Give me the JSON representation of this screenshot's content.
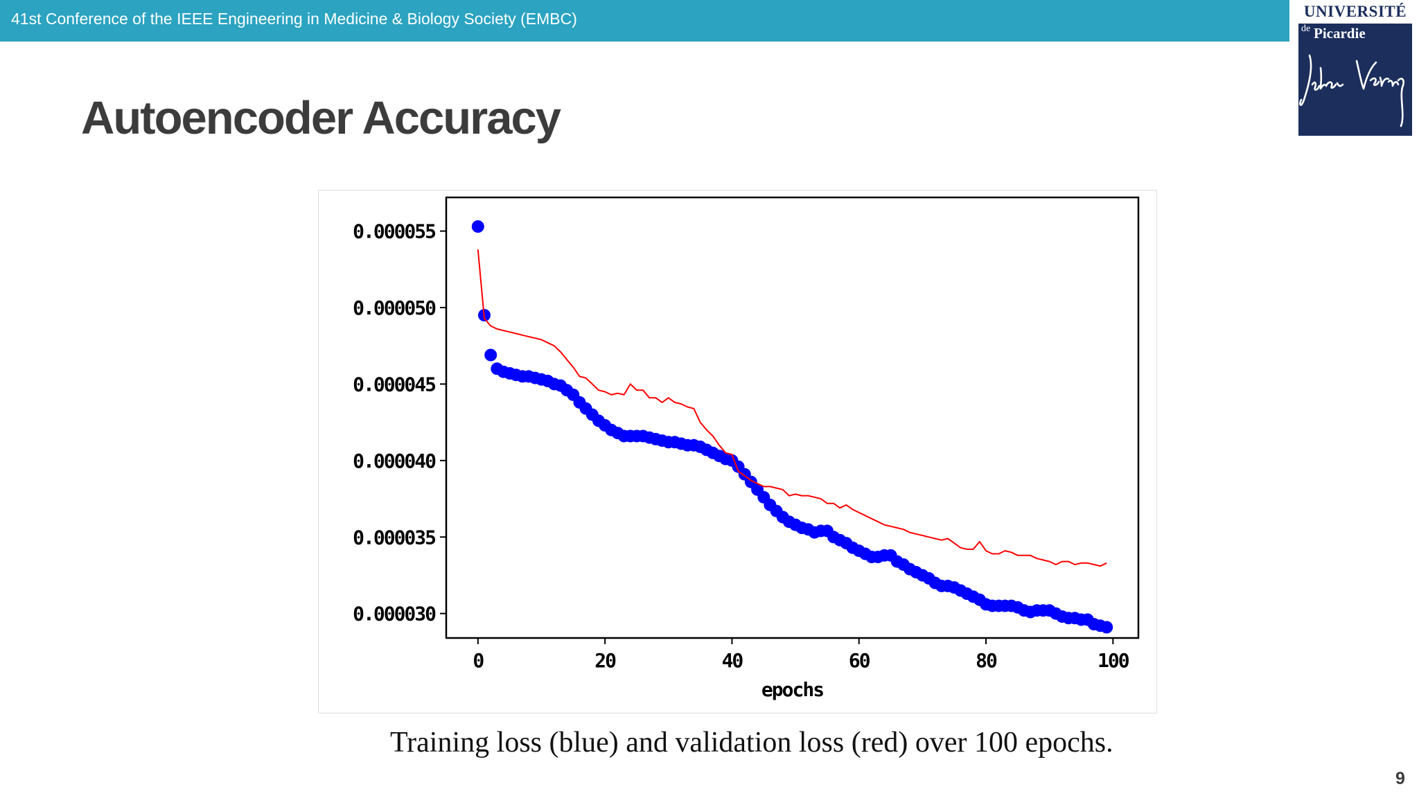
{
  "header": {
    "conference": "41st Conference of the IEEE Engineering in Medicine & Biology Society (EMBC)"
  },
  "logo": {
    "line1": "UNIVERSITÉ",
    "de": "de",
    "line2": "Picardie",
    "signature_text": "Jules Verne"
  },
  "slide": {
    "title": "Autoencoder Accuracy",
    "caption": "Training loss (blue) and validation loss (red) over 100 epochs.",
    "page_number": "9"
  },
  "colors": {
    "header_bar": "#2ba3c1",
    "logo_navy": "#1b2e5c",
    "training_series": "#0000ff",
    "validation_series": "#ff0000"
  },
  "chart_data": {
    "type": "line",
    "title": "",
    "xlabel": "epochs",
    "ylabel": "",
    "xlim": [
      -5,
      104
    ],
    "ylim": [
      2.84e-05,
      5.72e-05
    ],
    "xticks": [
      0,
      20,
      40,
      60,
      80,
      100
    ],
    "yticks": [
      3e-05,
      3.5e-05,
      4e-05,
      4.5e-05,
      5e-05,
      5.5e-05
    ],
    "ytick_labels": [
      "0.000030",
      "0.000035",
      "0.000040",
      "0.000045",
      "0.000050",
      "0.000055"
    ],
    "grid": false,
    "legend": "none",
    "series": [
      {
        "color": "#0000ff",
        "style": "markers",
        "x": [
          0,
          1,
          2,
          3,
          4,
          5,
          6,
          7,
          8,
          9,
          10,
          11,
          12,
          13,
          14,
          15,
          16,
          17,
          18,
          19,
          20,
          21,
          22,
          23,
          24,
          25,
          26,
          27,
          28,
          29,
          30,
          31,
          32,
          33,
          34,
          35,
          36,
          37,
          38,
          39,
          40,
          41,
          42,
          43,
          44,
          45,
          46,
          47,
          48,
          49,
          50,
          51,
          52,
          53,
          54,
          55,
          56,
          57,
          58,
          59,
          60,
          61,
          62,
          63,
          64,
          65,
          66,
          67,
          68,
          69,
          70,
          71,
          72,
          73,
          74,
          75,
          76,
          77,
          78,
          79,
          80,
          81,
          82,
          83,
          84,
          85,
          86,
          87,
          88,
          89,
          90,
          91,
          92,
          93,
          94,
          95,
          96,
          97,
          98,
          99
        ],
        "y": [
          5.53e-05,
          4.95e-05,
          4.69e-05,
          4.6e-05,
          4.58e-05,
          4.57e-05,
          4.56e-05,
          4.55e-05,
          4.55e-05,
          4.54e-05,
          4.53e-05,
          4.52e-05,
          4.5e-05,
          4.49e-05,
          4.46e-05,
          4.43e-05,
          4.38e-05,
          4.34e-05,
          4.3e-05,
          4.26e-05,
          4.23e-05,
          4.2e-05,
          4.18e-05,
          4.16e-05,
          4.16e-05,
          4.16e-05,
          4.16e-05,
          4.15e-05,
          4.14e-05,
          4.13e-05,
          4.12e-05,
          4.12e-05,
          4.11e-05,
          4.1e-05,
          4.1e-05,
          4.09e-05,
          4.07e-05,
          4.05e-05,
          4.03e-05,
          4.01e-05,
          4e-05,
          3.96e-05,
          3.91e-05,
          3.86e-05,
          3.81e-05,
          3.76e-05,
          3.71e-05,
          3.67e-05,
          3.63e-05,
          3.6e-05,
          3.58e-05,
          3.56e-05,
          3.55e-05,
          3.53e-05,
          3.54e-05,
          3.54e-05,
          3.5e-05,
          3.48e-05,
          3.46e-05,
          3.43e-05,
          3.41e-05,
          3.39e-05,
          3.37e-05,
          3.37e-05,
          3.38e-05,
          3.38e-05,
          3.34e-05,
          3.32e-05,
          3.29e-05,
          3.27e-05,
          3.25e-05,
          3.23e-05,
          3.2e-05,
          3.18e-05,
          3.18e-05,
          3.17e-05,
          3.15e-05,
          3.13e-05,
          3.11e-05,
          3.09e-05,
          3.06e-05,
          3.05e-05,
          3.05e-05,
          3.05e-05,
          3.05e-05,
          3.04e-05,
          3.02e-05,
          3.01e-05,
          3.02e-05,
          3.02e-05,
          3.02e-05,
          3e-05,
          2.98e-05,
          2.97e-05,
          2.97e-05,
          2.96e-05,
          2.96e-05,
          2.93e-05,
          2.92e-05,
          2.91e-05
        ]
      },
      {
        "color": "#ff0000",
        "style": "line",
        "x": [
          0,
          1,
          2,
          3,
          4,
          5,
          6,
          7,
          8,
          9,
          10,
          11,
          12,
          13,
          14,
          15,
          16,
          17,
          18,
          19,
          20,
          21,
          22,
          23,
          24,
          25,
          26,
          27,
          28,
          29,
          30,
          31,
          32,
          33,
          34,
          35,
          36,
          37,
          38,
          39,
          40,
          41,
          42,
          43,
          44,
          45,
          46,
          47,
          48,
          49,
          50,
          51,
          52,
          53,
          54,
          55,
          56,
          57,
          58,
          59,
          60,
          61,
          62,
          63,
          64,
          65,
          66,
          67,
          68,
          69,
          70,
          71,
          72,
          73,
          74,
          75,
          76,
          77,
          78,
          79,
          80,
          81,
          82,
          83,
          84,
          85,
          86,
          87,
          88,
          89,
          90,
          91,
          92,
          93,
          94,
          95,
          96,
          97,
          98,
          99
        ],
        "y": [
          5.38e-05,
          4.93e-05,
          4.88e-05,
          4.86e-05,
          4.85e-05,
          4.84e-05,
          4.83e-05,
          4.82e-05,
          4.81e-05,
          4.8e-05,
          4.79e-05,
          4.77e-05,
          4.75e-05,
          4.71e-05,
          4.66e-05,
          4.61e-05,
          4.55e-05,
          4.54e-05,
          4.5e-05,
          4.46e-05,
          4.45e-05,
          4.43e-05,
          4.44e-05,
          4.43e-05,
          4.5e-05,
          4.46e-05,
          4.46e-05,
          4.41e-05,
          4.41e-05,
          4.38e-05,
          4.41e-05,
          4.38e-05,
          4.37e-05,
          4.35e-05,
          4.34e-05,
          4.25e-05,
          4.2e-05,
          4.16e-05,
          4.1e-05,
          4.05e-05,
          4.04e-05,
          3.93e-05,
          3.9e-05,
          3.87e-05,
          3.85e-05,
          3.83e-05,
          3.83e-05,
          3.82e-05,
          3.81e-05,
          3.77e-05,
          3.78e-05,
          3.77e-05,
          3.77e-05,
          3.76e-05,
          3.75e-05,
          3.72e-05,
          3.72e-05,
          3.69e-05,
          3.71e-05,
          3.68e-05,
          3.66e-05,
          3.64e-05,
          3.62e-05,
          3.6e-05,
          3.58e-05,
          3.57e-05,
          3.56e-05,
          3.55e-05,
          3.53e-05,
          3.52e-05,
          3.51e-05,
          3.5e-05,
          3.49e-05,
          3.48e-05,
          3.49e-05,
          3.46e-05,
          3.43e-05,
          3.42e-05,
          3.42e-05,
          3.47e-05,
          3.41e-05,
          3.39e-05,
          3.39e-05,
          3.41e-05,
          3.4e-05,
          3.38e-05,
          3.38e-05,
          3.38e-05,
          3.36e-05,
          3.35e-05,
          3.34e-05,
          3.32e-05,
          3.34e-05,
          3.34e-05,
          3.32e-05,
          3.33e-05,
          3.33e-05,
          3.32e-05,
          3.31e-05,
          3.33e-05
        ]
      }
    ]
  }
}
